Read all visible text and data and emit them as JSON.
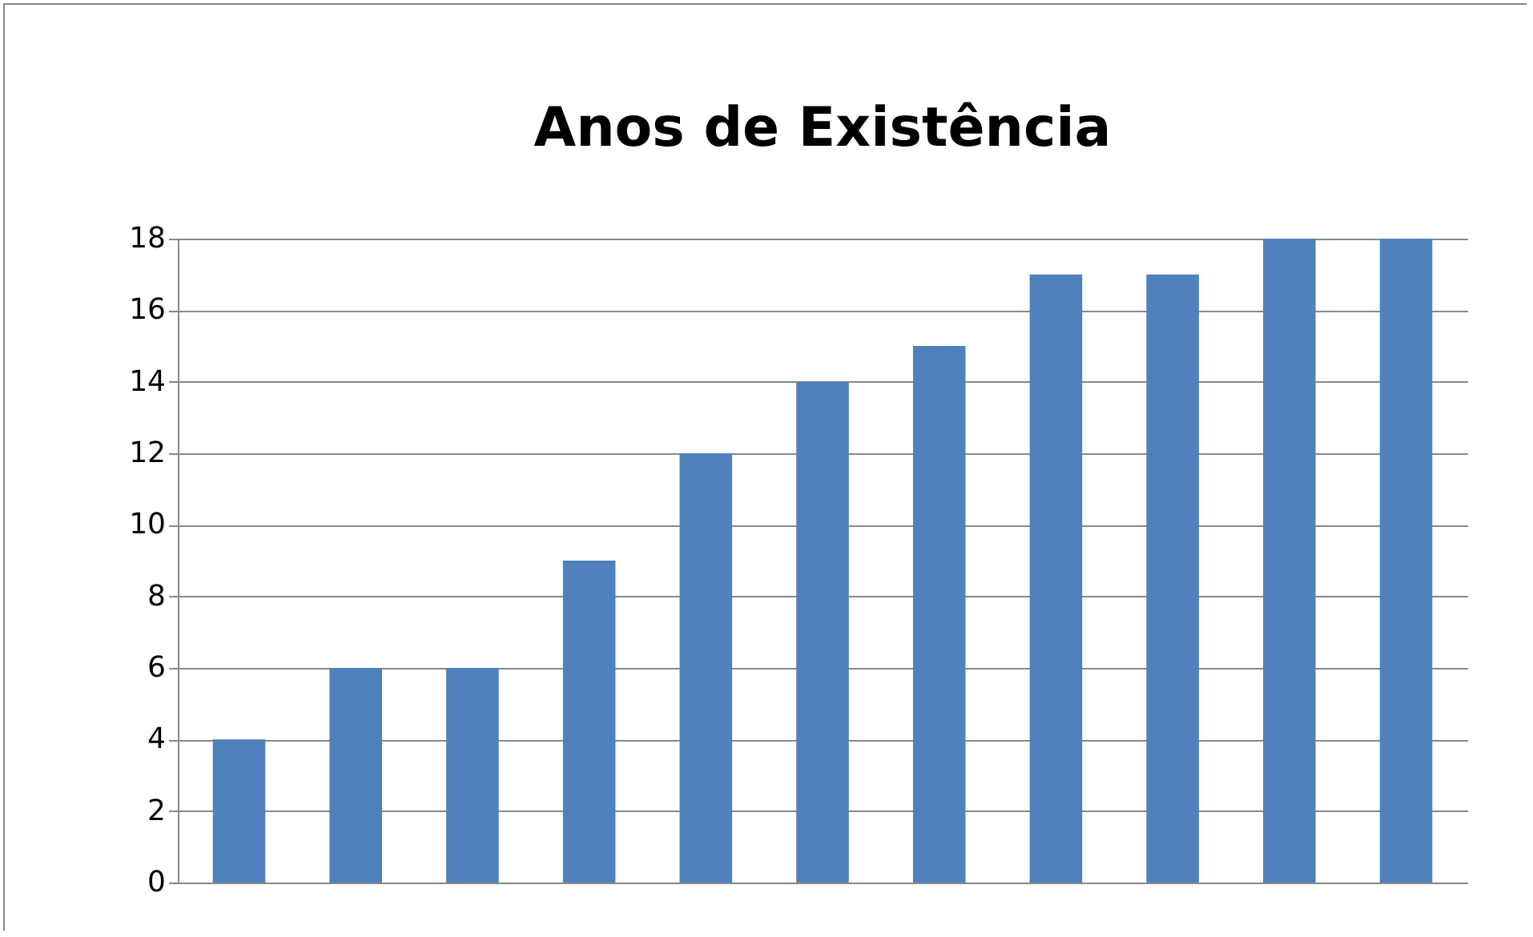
{
  "chart_data": {
    "type": "bar",
    "title": "Anos de Existência",
    "categories": [
      null,
      null,
      null,
      null,
      null,
      null,
      null,
      null,
      null,
      null,
      null
    ],
    "values": [
      4,
      6,
      6,
      9,
      12,
      14,
      15,
      17,
      17,
      18,
      18
    ],
    "color": "#4f81bd",
    "ylim": [
      0,
      18
    ],
    "yticks": [
      0,
      2,
      4,
      6,
      8,
      10,
      12,
      14,
      16,
      18
    ],
    "grid": "y",
    "tick_labels": "y"
  }
}
